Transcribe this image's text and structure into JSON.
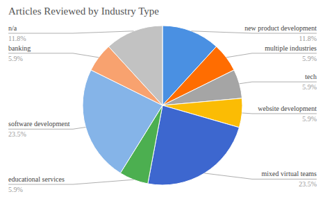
{
  "chart_data": {
    "type": "pie",
    "title": "Articles Reviewed by Industry Type",
    "categories": [
      "new product development",
      "multiple industries",
      "tech",
      "website development",
      "mixed virtual teams",
      "educational services",
      "software development",
      "banking",
      "n/a"
    ],
    "values": [
      11.8,
      5.9,
      5.9,
      5.9,
      23.5,
      5.9,
      23.5,
      5.9,
      11.8
    ],
    "value_labels": [
      "11.8%",
      "5.9%",
      "5.9%",
      "5.9%",
      "23.5%",
      "5.9%",
      "23.5%",
      "5.9%",
      "11.8%"
    ],
    "colors": [
      "#4a90e2",
      "#ff6d01",
      "#a5a5a5",
      "#fbbc04",
      "#3d67cf",
      "#4caf50",
      "#85b4e8",
      "#f8a26f",
      "#c2c2c2"
    ],
    "data_labels": true
  }
}
